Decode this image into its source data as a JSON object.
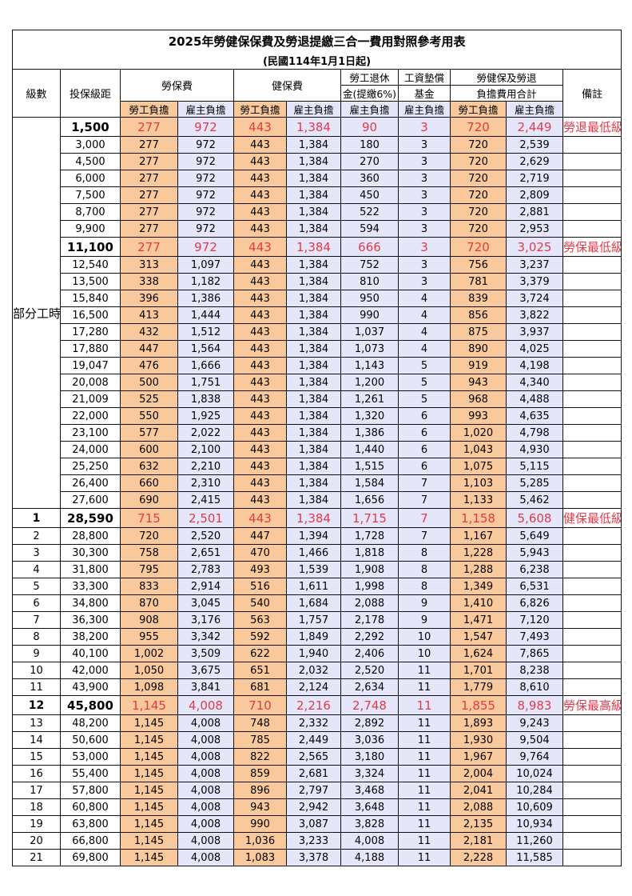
{
  "title": "2025年勞健保保費及勞退提繳三合一費用對照參考用表",
  "subtitle": "(民國114年1月1日起)",
  "headers": {
    "grade": "級數",
    "amount": "投保級距",
    "labor": "勞保費",
    "health": "健保費",
    "pension_1": "勞工退休",
    "pension_2": "金(提繳6%)",
    "wage_1": "工資墊償",
    "wage_2": "基金",
    "total_1": "勞健保及勞退",
    "total_2": "負擔費用合計",
    "note": "備註",
    "worker": "勞工負擔",
    "employer": "雇主負擔"
  },
  "part_time_label": "部分工時",
  "colors": {
    "worker_bg": "#f9c99b",
    "employer_bg": "#e6e6fa",
    "highlight_text": "#e23a48"
  },
  "rows": [
    {
      "grade": "",
      "amount": "1,500",
      "v": [
        "277",
        "972",
        "443",
        "1,384",
        "90",
        "3",
        "720",
        "2,449"
      ],
      "note": "勞退最低級距",
      "hl": true
    },
    {
      "grade": "",
      "amount": "3,000",
      "v": [
        "277",
        "972",
        "443",
        "1,384",
        "180",
        "3",
        "720",
        "2,539"
      ],
      "note": ""
    },
    {
      "grade": "",
      "amount": "4,500",
      "v": [
        "277",
        "972",
        "443",
        "1,384",
        "270",
        "3",
        "720",
        "2,629"
      ],
      "note": ""
    },
    {
      "grade": "",
      "amount": "6,000",
      "v": [
        "277",
        "972",
        "443",
        "1,384",
        "360",
        "3",
        "720",
        "2,719"
      ],
      "note": ""
    },
    {
      "grade": "",
      "amount": "7,500",
      "v": [
        "277",
        "972",
        "443",
        "1,384",
        "450",
        "3",
        "720",
        "2,809"
      ],
      "note": ""
    },
    {
      "grade": "",
      "amount": "8,700",
      "v": [
        "277",
        "972",
        "443",
        "1,384",
        "522",
        "3",
        "720",
        "2,881"
      ],
      "note": ""
    },
    {
      "grade": "",
      "amount": "9,900",
      "v": [
        "277",
        "972",
        "443",
        "1,384",
        "594",
        "3",
        "720",
        "2,953"
      ],
      "note": ""
    },
    {
      "grade": "",
      "amount": "11,100",
      "v": [
        "277",
        "972",
        "443",
        "1,384",
        "666",
        "3",
        "720",
        "3,025"
      ],
      "note": "勞保最低級距",
      "hl": true
    },
    {
      "grade": "",
      "amount": "12,540",
      "v": [
        "313",
        "1,097",
        "443",
        "1,384",
        "752",
        "3",
        "756",
        "3,237"
      ],
      "note": ""
    },
    {
      "grade": "",
      "amount": "13,500",
      "v": [
        "338",
        "1,182",
        "443",
        "1,384",
        "810",
        "3",
        "781",
        "3,379"
      ],
      "note": ""
    },
    {
      "grade": "",
      "amount": "15,840",
      "v": [
        "396",
        "1,386",
        "443",
        "1,384",
        "950",
        "4",
        "839",
        "3,724"
      ],
      "note": ""
    },
    {
      "grade": "",
      "amount": "16,500",
      "v": [
        "413",
        "1,444",
        "443",
        "1,384",
        "990",
        "4",
        "856",
        "3,822"
      ],
      "note": ""
    },
    {
      "grade": "",
      "amount": "17,280",
      "v": [
        "432",
        "1,512",
        "443",
        "1,384",
        "1,037",
        "4",
        "875",
        "3,937"
      ],
      "note": ""
    },
    {
      "grade": "",
      "amount": "17,880",
      "v": [
        "447",
        "1,564",
        "443",
        "1,384",
        "1,073",
        "4",
        "890",
        "4,025"
      ],
      "note": ""
    },
    {
      "grade": "",
      "amount": "19,047",
      "v": [
        "476",
        "1,666",
        "443",
        "1,384",
        "1,143",
        "5",
        "919",
        "4,198"
      ],
      "note": ""
    },
    {
      "grade": "",
      "amount": "20,008",
      "v": [
        "500",
        "1,751",
        "443",
        "1,384",
        "1,200",
        "5",
        "943",
        "4,340"
      ],
      "note": ""
    },
    {
      "grade": "",
      "amount": "21,009",
      "v": [
        "525",
        "1,838",
        "443",
        "1,384",
        "1,261",
        "5",
        "968",
        "4,488"
      ],
      "note": ""
    },
    {
      "grade": "",
      "amount": "22,000",
      "v": [
        "550",
        "1,925",
        "443",
        "1,384",
        "1,320",
        "6",
        "993",
        "4,635"
      ],
      "note": ""
    },
    {
      "grade": "",
      "amount": "23,100",
      "v": [
        "577",
        "2,022",
        "443",
        "1,384",
        "1,386",
        "6",
        "1,020",
        "4,798"
      ],
      "note": ""
    },
    {
      "grade": "",
      "amount": "24,000",
      "v": [
        "600",
        "2,100",
        "443",
        "1,384",
        "1,440",
        "6",
        "1,043",
        "4,930"
      ],
      "note": ""
    },
    {
      "grade": "",
      "amount": "25,250",
      "v": [
        "632",
        "2,210",
        "443",
        "1,384",
        "1,515",
        "6",
        "1,075",
        "5,115"
      ],
      "note": ""
    },
    {
      "grade": "",
      "amount": "26,400",
      "v": [
        "660",
        "2,310",
        "443",
        "1,384",
        "1,584",
        "7",
        "1,103",
        "5,285"
      ],
      "note": ""
    },
    {
      "grade": "",
      "amount": "27,600",
      "v": [
        "690",
        "2,415",
        "443",
        "1,384",
        "1,656",
        "7",
        "1,133",
        "5,462"
      ],
      "note": ""
    },
    {
      "grade": "1",
      "amount": "28,590",
      "v": [
        "715",
        "2,501",
        "443",
        "1,384",
        "1,715",
        "7",
        "1,158",
        "5,608"
      ],
      "note": "健保最低級距",
      "hl": true
    },
    {
      "grade": "2",
      "amount": "28,800",
      "v": [
        "720",
        "2,520",
        "447",
        "1,394",
        "1,728",
        "7",
        "1,167",
        "5,649"
      ],
      "note": ""
    },
    {
      "grade": "3",
      "amount": "30,300",
      "v": [
        "758",
        "2,651",
        "470",
        "1,466",
        "1,818",
        "8",
        "1,228",
        "5,943"
      ],
      "note": ""
    },
    {
      "grade": "4",
      "amount": "31,800",
      "v": [
        "795",
        "2,783",
        "493",
        "1,539",
        "1,908",
        "8",
        "1,288",
        "6,238"
      ],
      "note": ""
    },
    {
      "grade": "5",
      "amount": "33,300",
      "v": [
        "833",
        "2,914",
        "516",
        "1,611",
        "1,998",
        "8",
        "1,349",
        "6,531"
      ],
      "note": ""
    },
    {
      "grade": "6",
      "amount": "34,800",
      "v": [
        "870",
        "3,045",
        "540",
        "1,684",
        "2,088",
        "9",
        "1,410",
        "6,826"
      ],
      "note": ""
    },
    {
      "grade": "7",
      "amount": "36,300",
      "v": [
        "908",
        "3,176",
        "563",
        "1,757",
        "2,178",
        "9",
        "1,471",
        "7,120"
      ],
      "note": ""
    },
    {
      "grade": "8",
      "amount": "38,200",
      "v": [
        "955",
        "3,342",
        "592",
        "1,849",
        "2,292",
        "10",
        "1,547",
        "7,493"
      ],
      "note": ""
    },
    {
      "grade": "9",
      "amount": "40,100",
      "v": [
        "1,002",
        "3,509",
        "622",
        "1,940",
        "2,406",
        "10",
        "1,624",
        "7,865"
      ],
      "note": ""
    },
    {
      "grade": "10",
      "amount": "42,000",
      "v": [
        "1,050",
        "3,675",
        "651",
        "2,032",
        "2,520",
        "11",
        "1,701",
        "8,238"
      ],
      "note": ""
    },
    {
      "grade": "11",
      "amount": "43,900",
      "v": [
        "1,098",
        "3,841",
        "681",
        "2,124",
        "2,634",
        "11",
        "1,779",
        "8,610"
      ],
      "note": ""
    },
    {
      "grade": "12",
      "amount": "45,800",
      "v": [
        "1,145",
        "4,008",
        "710",
        "2,216",
        "2,748",
        "11",
        "1,855",
        "8,983"
      ],
      "note": "勞保最高級距",
      "hl": true
    },
    {
      "grade": "13",
      "amount": "48,200",
      "v": [
        "1,145",
        "4,008",
        "748",
        "2,332",
        "2,892",
        "11",
        "1,893",
        "9,243"
      ],
      "note": ""
    },
    {
      "grade": "14",
      "amount": "50,600",
      "v": [
        "1,145",
        "4,008",
        "785",
        "2,449",
        "3,036",
        "11",
        "1,930",
        "9,504"
      ],
      "note": ""
    },
    {
      "grade": "15",
      "amount": "53,000",
      "v": [
        "1,145",
        "4,008",
        "822",
        "2,565",
        "3,180",
        "11",
        "1,967",
        "9,764"
      ],
      "note": ""
    },
    {
      "grade": "16",
      "amount": "55,400",
      "v": [
        "1,145",
        "4,008",
        "859",
        "2,681",
        "3,324",
        "11",
        "2,004",
        "10,024"
      ],
      "note": ""
    },
    {
      "grade": "17",
      "amount": "57,800",
      "v": [
        "1,145",
        "4,008",
        "896",
        "2,797",
        "3,468",
        "11",
        "2,041",
        "10,284"
      ],
      "note": ""
    },
    {
      "grade": "18",
      "amount": "60,800",
      "v": [
        "1,145",
        "4,008",
        "943",
        "2,942",
        "3,648",
        "11",
        "2,088",
        "10,609"
      ],
      "note": ""
    },
    {
      "grade": "19",
      "amount": "63,800",
      "v": [
        "1,145",
        "4,008",
        "990",
        "3,087",
        "3,828",
        "11",
        "2,135",
        "10,934"
      ],
      "note": ""
    },
    {
      "grade": "20",
      "amount": "66,800",
      "v": [
        "1,145",
        "4,008",
        "1,036",
        "3,233",
        "4,008",
        "11",
        "2,181",
        "11,260"
      ],
      "note": ""
    },
    {
      "grade": "21",
      "amount": "69,800",
      "v": [
        "1,145",
        "4,008",
        "1,083",
        "3,378",
        "4,188",
        "11",
        "2,228",
        "11,585"
      ],
      "note": ""
    }
  ]
}
